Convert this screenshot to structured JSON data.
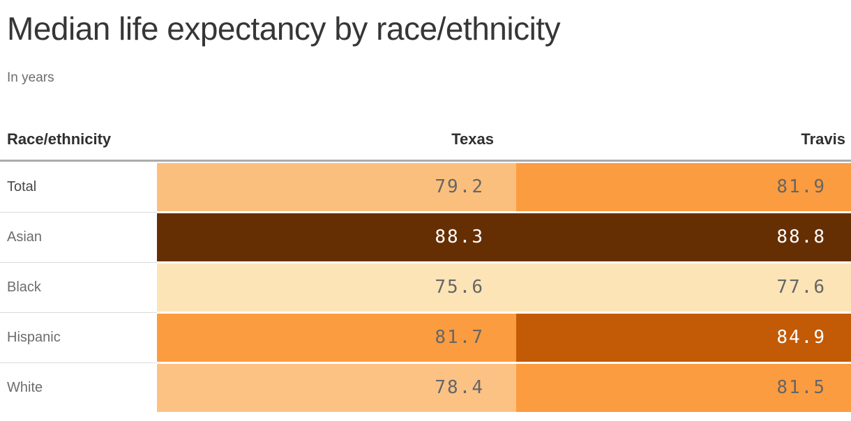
{
  "header": {
    "title": "Median life expectancy by race/ethnicity",
    "subtitle": "In years"
  },
  "table": {
    "columns": {
      "label": "Race/ethnicity",
      "col1": "Texas",
      "col2": "Travis"
    },
    "rows": [
      {
        "label": "Total",
        "label_color": "#484848",
        "texas": "79.2",
        "travis": "81.9",
        "texas_bg": "#FBBF7D",
        "travis_bg": "#FB9C40",
        "texas_fg": "#666666",
        "travis_fg": "#666666"
      },
      {
        "label": "Asian",
        "label_color": "#6c6c6c",
        "texas": "88.3",
        "travis": "88.8",
        "texas_bg": "#662F03",
        "travis_bg": "#662F03",
        "texas_fg": "#FFFFFF",
        "travis_fg": "#FFFFFF"
      },
      {
        "label": "Black",
        "label_color": "#6c6c6c",
        "texas": "75.6",
        "travis": "77.6",
        "texas_bg": "#FCE4B6",
        "travis_bg": "#FCE4B6",
        "texas_fg": "#666666",
        "travis_fg": "#666666"
      },
      {
        "label": "Hispanic",
        "label_color": "#6c6c6c",
        "texas": "81.7",
        "travis": "84.9",
        "texas_bg": "#FB9C40",
        "travis_bg": "#C25A06",
        "texas_fg": "#666666",
        "travis_fg": "#FFFFFF"
      },
      {
        "label": "White",
        "label_color": "#6c6c6c",
        "texas": "78.4",
        "travis": "81.5",
        "texas_bg": "#FBC284",
        "travis_bg": "#FB9C40",
        "texas_fg": "#666666",
        "travis_fg": "#666666"
      }
    ]
  },
  "colors": {
    "header_rule": "#ababab",
    "row_divider": "#dbdbdb",
    "title_text": "#363636",
    "subtitle_text": "#6c6c6c",
    "header_text": "#2f2f2f",
    "scale_palette": [
      "#FCE4B6",
      "#FBBF7D",
      "#FB9C40",
      "#C25A06",
      "#662F03"
    ]
  },
  "chart_data": {
    "type": "heatmap",
    "title": "Median life expectancy by race/ethnicity",
    "subtitle": "In years",
    "unit": "years",
    "categories": [
      "Total",
      "Asian",
      "Black",
      "Hispanic",
      "White"
    ],
    "series": [
      {
        "name": "Texas",
        "values": [
          79.2,
          88.3,
          75.6,
          81.7,
          78.4
        ]
      },
      {
        "name": "Travis",
        "values": [
          81.9,
          88.8,
          77.6,
          84.9,
          81.5
        ]
      }
    ],
    "value_range": [
      75.6,
      88.8
    ],
    "color_scale": [
      "#FCE4B6",
      "#FBBF7D",
      "#FB9C40",
      "#C25A06",
      "#662F03"
    ],
    "legend": "none",
    "grid": "off"
  }
}
